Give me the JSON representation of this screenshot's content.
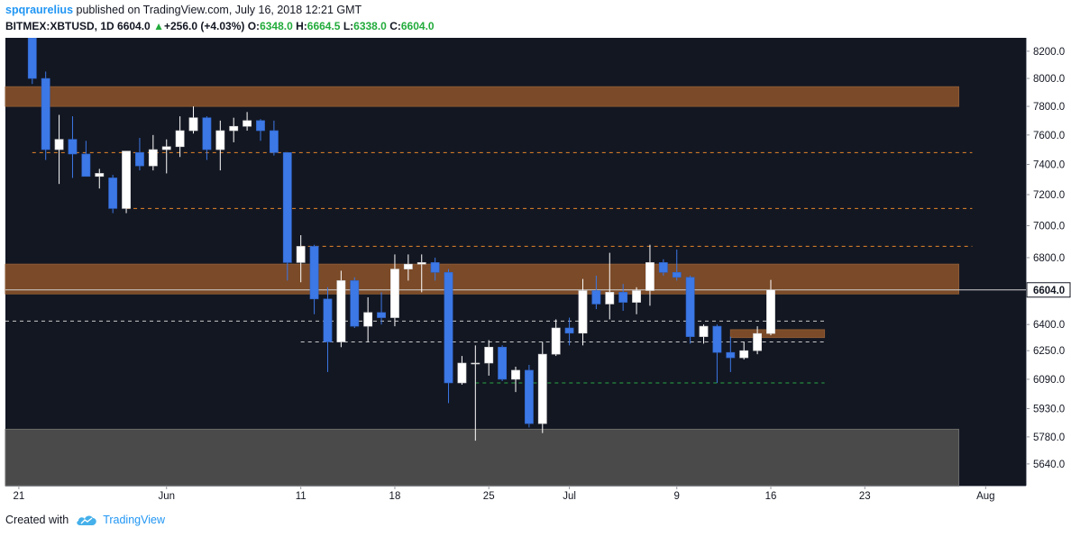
{
  "header": {
    "author": "spqraurelius",
    "published_text": "published on TradingView.com, July 16, 2018 12:21 GMT",
    "symbol": "BITMEX:XBTUSD, 1D",
    "last_price": "6604.0",
    "change_arrow": "▲",
    "change": "+256.0 (+4.03%)",
    "open_label": "O:",
    "open": "6348.0",
    "high_label": "H:",
    "high": "6664.5",
    "low_label": "L:",
    "low": "6338.0",
    "close_label": "C:",
    "close": "6604.0"
  },
  "footer": {
    "created_with": "Created with",
    "brand": "TradingView",
    "logo_icon": "tradingview-cloud-icon"
  },
  "colors": {
    "background": "#131722",
    "up_body": "#ffffff",
    "down_body": "#3c78e6",
    "zone": "#7b4a28",
    "grey_zone": "#4a4a4a",
    "orange_dash": "#e8862a",
    "white_dash": "#c8c8c8",
    "green_dash": "#28a745",
    "price_tag": "#ffffff"
  },
  "chart_data": {
    "type": "candlestick",
    "title": "",
    "xlabel": "",
    "ylabel": "",
    "y_scale": "log",
    "ylim": [
      5530,
      8300
    ],
    "y_ticks": [
      8200.0,
      8000.0,
      7800.0,
      7600.0,
      7400.0,
      7200.0,
      7000.0,
      6800.0,
      6604.0,
      6400.0,
      6250.0,
      6090.0,
      5930.0,
      5780.0,
      5640.0
    ],
    "y_tick_labels": [
      "8200.0",
      "8000.0",
      "7800.0",
      "7600.0",
      "7400.0",
      "7200.0",
      "7000.0",
      "6800.0",
      "6604.0",
      "6400.0",
      "6250.0",
      "6090.0",
      "5930.0",
      "5780.0",
      "5640.0"
    ],
    "last_price": 6604.0,
    "x_ticks": [
      {
        "date": "2018-05-21",
        "label": "21"
      },
      {
        "date": "2018-06-01",
        "label": "Jun"
      },
      {
        "date": "2018-06-11",
        "label": "11"
      },
      {
        "date": "2018-06-18",
        "label": "18"
      },
      {
        "date": "2018-06-25",
        "label": "25"
      },
      {
        "date": "2018-07-01",
        "label": "Jul"
      },
      {
        "date": "2018-07-09",
        "label": "9"
      },
      {
        "date": "2018-07-16",
        "label": "16"
      },
      {
        "date": "2018-07-23",
        "label": "23"
      },
      {
        "date": "2018-08-01",
        "label": "Aug"
      }
    ],
    "x_range": [
      "2018-05-20",
      "2018-08-04"
    ],
    "candles": [
      {
        "date": "2018-05-22",
        "o": 8400,
        "h": 8400,
        "l": 7960,
        "c": 8000
      },
      {
        "date": "2018-05-23",
        "o": 8000,
        "h": 8050,
        "l": 7430,
        "c": 7500
      },
      {
        "date": "2018-05-24",
        "o": 7500,
        "h": 7740,
        "l": 7270,
        "c": 7570
      },
      {
        "date": "2018-05-25",
        "o": 7570,
        "h": 7730,
        "l": 7310,
        "c": 7470
      },
      {
        "date": "2018-05-26",
        "o": 7470,
        "h": 7560,
        "l": 7330,
        "c": 7320
      },
      {
        "date": "2018-05-27",
        "o": 7320,
        "h": 7370,
        "l": 7240,
        "c": 7340
      },
      {
        "date": "2018-05-28",
        "o": 7310,
        "h": 7330,
        "l": 7080,
        "c": 7110
      },
      {
        "date": "2018-05-29",
        "o": 7110,
        "h": 7480,
        "l": 7080,
        "c": 7490
      },
      {
        "date": "2018-05-30",
        "o": 7480,
        "h": 7580,
        "l": 7360,
        "c": 7390
      },
      {
        "date": "2018-05-31",
        "o": 7390,
        "h": 7600,
        "l": 7360,
        "c": 7500
      },
      {
        "date": "2018-06-01",
        "o": 7500,
        "h": 7570,
        "l": 7340,
        "c": 7520
      },
      {
        "date": "2018-06-02",
        "o": 7520,
        "h": 7730,
        "l": 7450,
        "c": 7630
      },
      {
        "date": "2018-06-03",
        "o": 7630,
        "h": 7800,
        "l": 7610,
        "c": 7720
      },
      {
        "date": "2018-06-04",
        "o": 7720,
        "h": 7730,
        "l": 7430,
        "c": 7500
      },
      {
        "date": "2018-06-05",
        "o": 7500,
        "h": 7700,
        "l": 7360,
        "c": 7630
      },
      {
        "date": "2018-06-06",
        "o": 7630,
        "h": 7720,
        "l": 7550,
        "c": 7660
      },
      {
        "date": "2018-06-07",
        "o": 7660,
        "h": 7760,
        "l": 7630,
        "c": 7700
      },
      {
        "date": "2018-06-08",
        "o": 7700,
        "h": 7710,
        "l": 7560,
        "c": 7630
      },
      {
        "date": "2018-06-09",
        "o": 7630,
        "h": 7700,
        "l": 7460,
        "c": 7480
      },
      {
        "date": "2018-06-10",
        "o": 7480,
        "h": 7480,
        "l": 6660,
        "c": 6770
      },
      {
        "date": "2018-06-11",
        "o": 6770,
        "h": 6940,
        "l": 6650,
        "c": 6870
      },
      {
        "date": "2018-06-12",
        "o": 6870,
        "h": 6880,
        "l": 6460,
        "c": 6550
      },
      {
        "date": "2018-06-13",
        "o": 6550,
        "h": 6620,
        "l": 6130,
        "c": 6300
      },
      {
        "date": "2018-06-14",
        "o": 6300,
        "h": 6720,
        "l": 6270,
        "c": 6660
      },
      {
        "date": "2018-06-15",
        "o": 6660,
        "h": 6680,
        "l": 6380,
        "c": 6390
      },
      {
        "date": "2018-06-16",
        "o": 6390,
        "h": 6560,
        "l": 6300,
        "c": 6470
      },
      {
        "date": "2018-06-17",
        "o": 6470,
        "h": 6590,
        "l": 6400,
        "c": 6440
      },
      {
        "date": "2018-06-18",
        "o": 6440,
        "h": 6820,
        "l": 6390,
        "c": 6730
      },
      {
        "date": "2018-06-19",
        "o": 6730,
        "h": 6820,
        "l": 6660,
        "c": 6760
      },
      {
        "date": "2018-06-20",
        "o": 6760,
        "h": 6820,
        "l": 6590,
        "c": 6770
      },
      {
        "date": "2018-06-21",
        "o": 6770,
        "h": 6800,
        "l": 6660,
        "c": 6710
      },
      {
        "date": "2018-06-22",
        "o": 6710,
        "h": 6730,
        "l": 5960,
        "c": 6070
      },
      {
        "date": "2018-06-23",
        "o": 6070,
        "h": 6220,
        "l": 6060,
        "c": 6180
      },
      {
        "date": "2018-06-24",
        "o": 6180,
        "h": 6280,
        "l": 5760,
        "c": 6180
      },
      {
        "date": "2018-06-25",
        "o": 6180,
        "h": 6310,
        "l": 6110,
        "c": 6270
      },
      {
        "date": "2018-06-26",
        "o": 6270,
        "h": 6280,
        "l": 6080,
        "c": 6090
      },
      {
        "date": "2018-06-27",
        "o": 6090,
        "h": 6160,
        "l": 6020,
        "c": 6140
      },
      {
        "date": "2018-06-28",
        "o": 6140,
        "h": 6170,
        "l": 5830,
        "c": 5850
      },
      {
        "date": "2018-06-29",
        "o": 5850,
        "h": 6300,
        "l": 5800,
        "c": 6230
      },
      {
        "date": "2018-06-30",
        "o": 6230,
        "h": 6430,
        "l": 6220,
        "c": 6380
      },
      {
        "date": "2018-07-01",
        "o": 6380,
        "h": 6440,
        "l": 6280,
        "c": 6350
      },
      {
        "date": "2018-07-02",
        "o": 6350,
        "h": 6670,
        "l": 6280,
        "c": 6600
      },
      {
        "date": "2018-07-03",
        "o": 6600,
        "h": 6690,
        "l": 6490,
        "c": 6520
      },
      {
        "date": "2018-07-04",
        "o": 6520,
        "h": 6830,
        "l": 6430,
        "c": 6590
      },
      {
        "date": "2018-07-05",
        "o": 6590,
        "h": 6640,
        "l": 6480,
        "c": 6530
      },
      {
        "date": "2018-07-06",
        "o": 6530,
        "h": 6620,
        "l": 6460,
        "c": 6600
      },
      {
        "date": "2018-07-07",
        "o": 6600,
        "h": 6880,
        "l": 6510,
        "c": 6770
      },
      {
        "date": "2018-07-08",
        "o": 6770,
        "h": 6790,
        "l": 6690,
        "c": 6710
      },
      {
        "date": "2018-07-09",
        "o": 6710,
        "h": 6850,
        "l": 6660,
        "c": 6680
      },
      {
        "date": "2018-07-10",
        "o": 6680,
        "h": 6690,
        "l": 6290,
        "c": 6330
      },
      {
        "date": "2018-07-11",
        "o": 6330,
        "h": 6400,
        "l": 6290,
        "c": 6390
      },
      {
        "date": "2018-07-12",
        "o": 6390,
        "h": 6400,
        "l": 6070,
        "c": 6240
      },
      {
        "date": "2018-07-13",
        "o": 6240,
        "h": 6330,
        "l": 6130,
        "c": 6210
      },
      {
        "date": "2018-07-14",
        "o": 6210,
        "h": 6300,
        "l": 6200,
        "c": 6250
      },
      {
        "date": "2018-07-15",
        "o": 6250,
        "h": 6390,
        "l": 6230,
        "c": 6348
      },
      {
        "date": "2018-07-16",
        "o": 6348,
        "h": 6664.5,
        "l": 6338,
        "c": 6604
      }
    ],
    "zones": [
      {
        "kind": "resistance",
        "from": 7800,
        "to": 7940,
        "start": "2018-05-20",
        "end": "2018-07-30"
      },
      {
        "kind": "resistance",
        "from": 6580,
        "to": 6760,
        "start": "2018-05-20",
        "end": "2018-07-30"
      },
      {
        "kind": "support",
        "from": 6325,
        "to": 6370,
        "start": "2018-07-13",
        "end": "2018-07-20"
      },
      {
        "kind": "support",
        "from": 5530,
        "to": 5820,
        "start": "2018-05-20",
        "end": "2018-07-30"
      }
    ],
    "lines": [
      {
        "style": "orange-dashed",
        "price": 7480,
        "start": "2018-05-22",
        "end": "2018-07-31"
      },
      {
        "style": "orange-dashed",
        "price": 7110,
        "start": "2018-05-29",
        "end": "2018-07-31"
      },
      {
        "style": "orange-dashed",
        "price": 6870,
        "start": "2018-06-11",
        "end": "2018-07-31"
      },
      {
        "style": "white-dashed",
        "price": 6420,
        "start": "2018-05-20",
        "end": "2018-07-20"
      },
      {
        "style": "white-dashed",
        "price": 6300,
        "start": "2018-06-11",
        "end": "2018-07-20"
      },
      {
        "style": "green-dashed",
        "price": 6070,
        "start": "2018-06-24",
        "end": "2018-07-20"
      }
    ]
  }
}
